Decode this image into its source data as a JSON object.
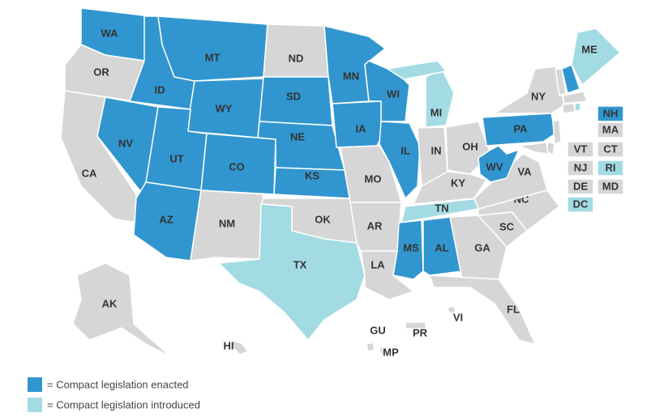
{
  "states": [
    {
      "label": "WA",
      "color": "#3196cf"
    },
    {
      "label": "OR",
      "color": "#d6d6d6"
    },
    {
      "label": "CA",
      "color": "#d6d6d6"
    },
    {
      "label": "NV",
      "color": "#3196cf"
    },
    {
      "label": "ID",
      "color": "#3196cf"
    },
    {
      "label": "MT",
      "color": "#3196cf"
    },
    {
      "label": "WY",
      "color": "#3196cf"
    },
    {
      "label": "UT",
      "color": "#3196cf"
    },
    {
      "label": "CO",
      "color": "#3196cf"
    },
    {
      "label": "AZ",
      "color": "#3196cf"
    },
    {
      "label": "NM",
      "color": "#d6d6d6"
    },
    {
      "label": "ND",
      "color": "#d6d6d6"
    },
    {
      "label": "SD",
      "color": "#3196cf"
    },
    {
      "label": "NE",
      "color": "#3196cf"
    },
    {
      "label": "KS",
      "color": "#3196cf"
    },
    {
      "label": "OK",
      "color": "#d6d6d6"
    },
    {
      "label": "TX",
      "color": "#a3dbe3"
    },
    {
      "label": "MN",
      "color": "#3196cf"
    },
    {
      "label": "IA",
      "color": "#3196cf"
    },
    {
      "label": "MO",
      "color": "#d6d6d6"
    },
    {
      "label": "AR",
      "color": "#d6d6d6"
    },
    {
      "label": "LA",
      "color": "#d6d6d6"
    },
    {
      "label": "WI",
      "color": "#3196cf"
    },
    {
      "label": "IL",
      "color": "#3196cf"
    },
    {
      "label": "MI",
      "color": "#a3dbe3"
    },
    {
      "label": "IN",
      "color": "#d6d6d6"
    },
    {
      "label": "OH",
      "color": "#d6d6d6"
    },
    {
      "label": "KY",
      "color": "#d6d6d6"
    },
    {
      "label": "TN",
      "color": "#a3dbe3"
    },
    {
      "label": "MS",
      "color": "#3196cf"
    },
    {
      "label": "AL",
      "color": "#3196cf"
    },
    {
      "label": "GA",
      "color": "#d6d6d6"
    },
    {
      "label": "FL",
      "color": "#d6d6d6"
    },
    {
      "label": "SC",
      "color": "#d6d6d6"
    },
    {
      "label": "NC",
      "color": "#d6d6d6"
    },
    {
      "label": "VA",
      "color": "#d6d6d6"
    },
    {
      "label": "WV",
      "color": "#3196cf"
    },
    {
      "label": "PA",
      "color": "#3196cf"
    },
    {
      "label": "NY",
      "color": "#d6d6d6"
    },
    {
      "label": "ME",
      "color": "#a3dbe3"
    },
    {
      "label": "VT",
      "color": "#d6d6d6"
    },
    {
      "label": "NH",
      "color": "#3196cf"
    },
    {
      "label": "MA",
      "color": "#d6d6d6"
    },
    {
      "label": "CT",
      "color": "#d6d6d6"
    },
    {
      "label": "RI",
      "color": "#a3dbe3"
    },
    {
      "label": "NJ",
      "color": "#d6d6d6"
    },
    {
      "label": "DE",
      "color": "#d6d6d6"
    },
    {
      "label": "MD",
      "color": "#d6d6d6"
    },
    {
      "label": "DC",
      "color": "#a3dbe3"
    },
    {
      "label": "AK",
      "color": "#d6d6d6"
    },
    {
      "label": "HI",
      "color": "#d6d6d6"
    },
    {
      "label": "GU",
      "color": "#d6d6d6"
    },
    {
      "label": "PR",
      "color": "#d6d6d6"
    },
    {
      "label": "MP",
      "color": "#d6d6d6"
    },
    {
      "label": "VI",
      "color": "#d6d6d6"
    }
  ],
  "legend": [
    {
      "label": "= Compact legislation enacted",
      "color": "#3196cf"
    },
    {
      "label": "= Compact legislation introduced",
      "color": "#a3dbe3"
    }
  ]
}
